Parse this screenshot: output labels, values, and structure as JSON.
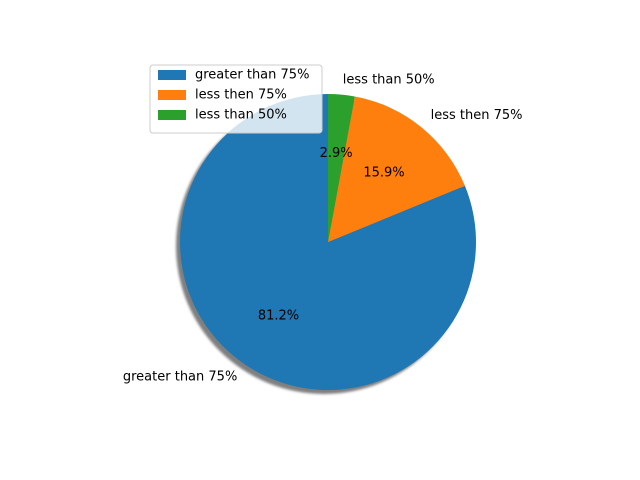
{
  "chart_data": {
    "type": "pie",
    "slices": [
      {
        "label": "greater than 75%",
        "value": 81.2,
        "pct_label": "81.2%",
        "color": "#1f77b4"
      },
      {
        "label": "less then 75%",
        "value": 15.9,
        "pct_label": "15.9%",
        "color": "#ff7f0e"
      },
      {
        "label": "less than 50%",
        "value": 2.9,
        "pct_label": "2.9%",
        "color": "#2ca02c"
      }
    ],
    "start_angle_deg": 90,
    "direction": "counterclockwise",
    "shadow": true,
    "legend": {
      "position": "upper-left",
      "entries": [
        "greater than 75%",
        "less then 75%",
        "less than 50%"
      ]
    }
  }
}
